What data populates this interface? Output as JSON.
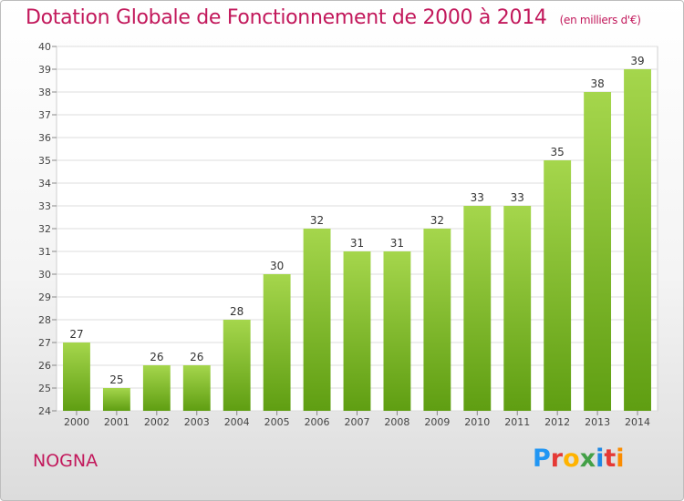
{
  "title": "Dotation Globale de Fonctionnement de 2000 à 2014",
  "subtitle": "(en milliers d'€)",
  "commune": "NOGNA",
  "logo": {
    "letters": [
      "P",
      "r",
      "o",
      "x",
      "i",
      "t",
      "i"
    ]
  },
  "colors": {
    "title": "#c2185b",
    "bar_top": "#a5d64c",
    "bar_bottom": "#5f9e12"
  },
  "chart_data": {
    "type": "bar",
    "title": "Dotation Globale de Fonctionnement de 2000 à 2014",
    "subtitle": "(en milliers d'€)",
    "categories": [
      "2000",
      "2001",
      "2002",
      "2003",
      "2004",
      "2005",
      "2006",
      "2007",
      "2008",
      "2009",
      "2010",
      "2011",
      "2012",
      "2013",
      "2014"
    ],
    "values": [
      27,
      25,
      26,
      26,
      28,
      30,
      32,
      31,
      31,
      32,
      33,
      33,
      35,
      38,
      39
    ],
    "ylim": [
      24,
      40
    ],
    "yticks": [
      24,
      25,
      26,
      27,
      28,
      29,
      30,
      31,
      32,
      33,
      34,
      35,
      36,
      37,
      38,
      39,
      40
    ],
    "grid": true,
    "legend": "none"
  }
}
